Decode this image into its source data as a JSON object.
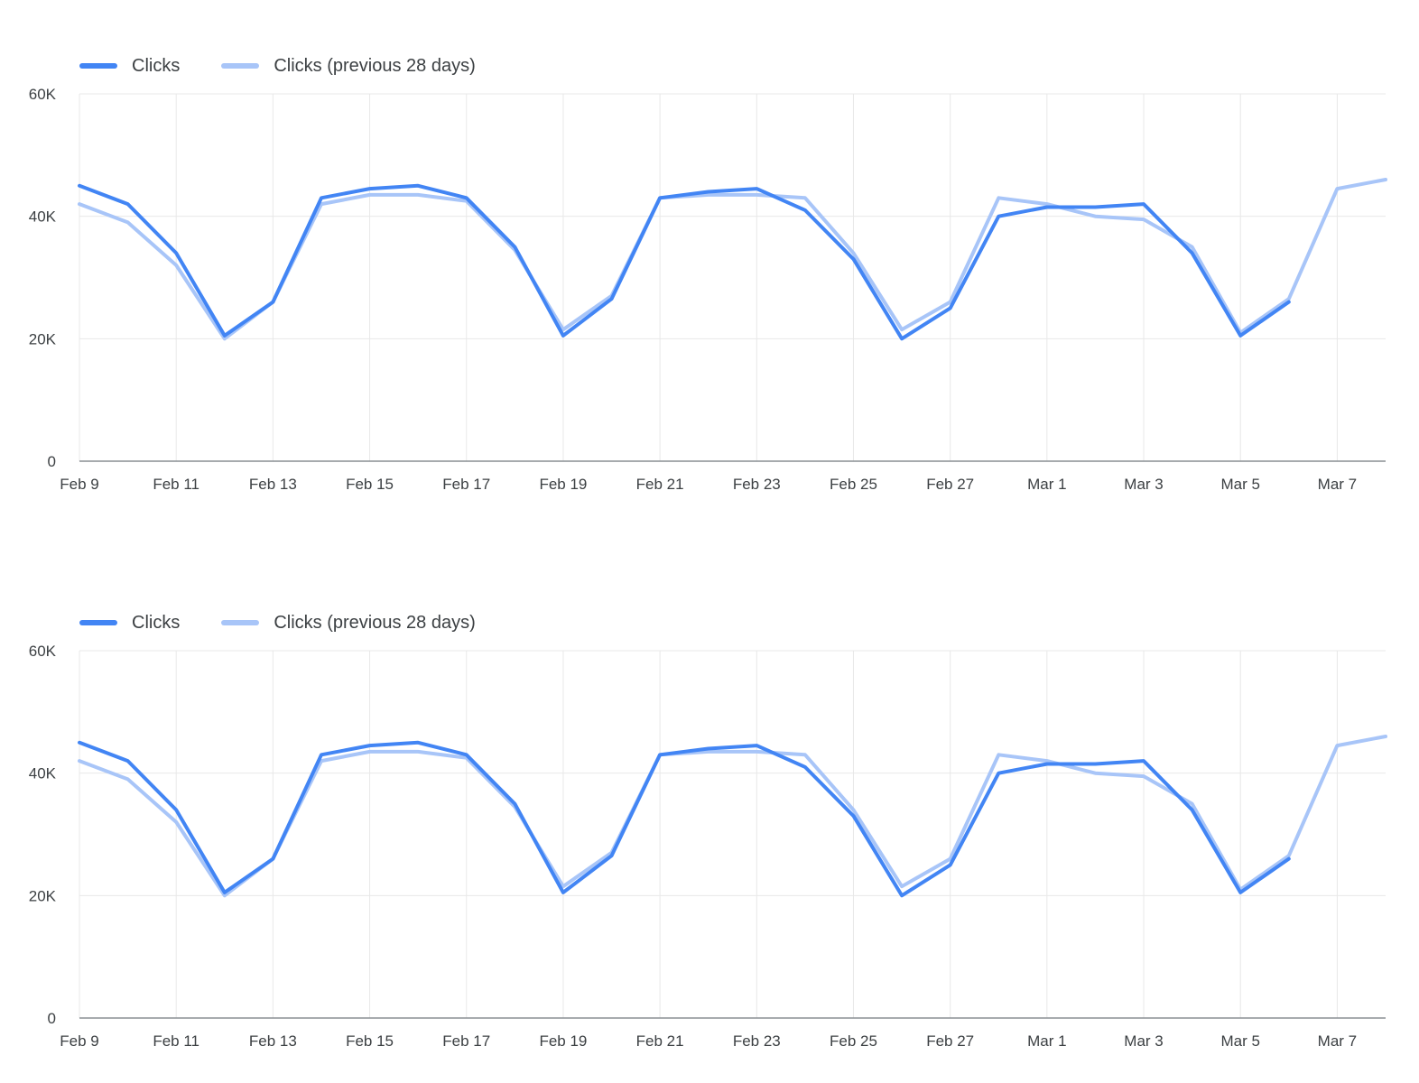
{
  "page": {
    "background": "#ffffff"
  },
  "chart_data": [
    {
      "type": "line",
      "title": "",
      "xlabel": "",
      "ylabel": "",
      "grid": true,
      "legend_position": "top-left",
      "ylim": [
        0,
        60000
      ],
      "yticks": [
        {
          "value": 0,
          "label": "0"
        },
        {
          "value": 20000,
          "label": "20K"
        },
        {
          "value": 40000,
          "label": "40K"
        },
        {
          "value": 60000,
          "label": "60K"
        }
      ],
      "xtick_every": 2,
      "x": [
        "Feb 9",
        "Feb 10",
        "Feb 11",
        "Feb 12",
        "Feb 13",
        "Feb 14",
        "Feb 15",
        "Feb 16",
        "Feb 17",
        "Feb 18",
        "Feb 19",
        "Feb 20",
        "Feb 21",
        "Feb 22",
        "Feb 23",
        "Feb 24",
        "Feb 25",
        "Feb 26",
        "Feb 27",
        "Feb 28",
        "Mar 1",
        "Mar 2",
        "Mar 3",
        "Mar 4",
        "Mar 5",
        "Mar 6",
        "Mar 7",
        "Mar 8"
      ],
      "series": [
        {
          "name": "Clicks",
          "color": "#4285f4",
          "values": [
            45000,
            42000,
            34000,
            20500,
            26000,
            43000,
            44500,
            45000,
            43000,
            35000,
            20500,
            26500,
            43000,
            44000,
            44500,
            41000,
            33000,
            20000,
            25000,
            40000,
            41500,
            41500,
            42000,
            34000,
            20500,
            26000,
            null,
            null
          ]
        },
        {
          "name": "Clicks (previous 28 days)",
          "color": "#a8c5f8",
          "values": [
            42000,
            39000,
            32000,
            20000,
            26000,
            42000,
            43500,
            43500,
            42500,
            34500,
            21500,
            27000,
            43000,
            43500,
            43500,
            43000,
            34000,
            21500,
            26000,
            43000,
            42000,
            40000,
            39500,
            35000,
            21000,
            26500,
            44500,
            46000
          ]
        }
      ]
    },
    {
      "type": "line",
      "title": "",
      "xlabel": "",
      "ylabel": "",
      "grid": true,
      "legend_position": "top-left",
      "ylim": [
        0,
        60000
      ],
      "yticks": [
        {
          "value": 0,
          "label": "0"
        },
        {
          "value": 20000,
          "label": "20K"
        },
        {
          "value": 40000,
          "label": "40K"
        },
        {
          "value": 60000,
          "label": "60K"
        }
      ],
      "xtick_every": 2,
      "x": [
        "Feb 9",
        "Feb 10",
        "Feb 11",
        "Feb 12",
        "Feb 13",
        "Feb 14",
        "Feb 15",
        "Feb 16",
        "Feb 17",
        "Feb 18",
        "Feb 19",
        "Feb 20",
        "Feb 21",
        "Feb 22",
        "Feb 23",
        "Feb 24",
        "Feb 25",
        "Feb 26",
        "Feb 27",
        "Feb 28",
        "Mar 1",
        "Mar 2",
        "Mar 3",
        "Mar 4",
        "Mar 5",
        "Mar 6",
        "Mar 7",
        "Mar 8"
      ],
      "series": [
        {
          "name": "Clicks",
          "color": "#4285f4",
          "values": [
            45000,
            42000,
            34000,
            20500,
            26000,
            43000,
            44500,
            45000,
            43000,
            35000,
            20500,
            26500,
            43000,
            44000,
            44500,
            41000,
            33000,
            20000,
            25000,
            40000,
            41500,
            41500,
            42000,
            34000,
            20500,
            26000,
            null,
            null
          ]
        },
        {
          "name": "Clicks (previous 28 days)",
          "color": "#a8c5f8",
          "values": [
            42000,
            39000,
            32000,
            20000,
            26000,
            42000,
            43500,
            43500,
            42500,
            34500,
            21500,
            27000,
            43000,
            43500,
            43500,
            43000,
            34000,
            21500,
            26000,
            43000,
            42000,
            40000,
            39500,
            35000,
            21000,
            26500,
            44500,
            46000
          ]
        }
      ]
    }
  ]
}
